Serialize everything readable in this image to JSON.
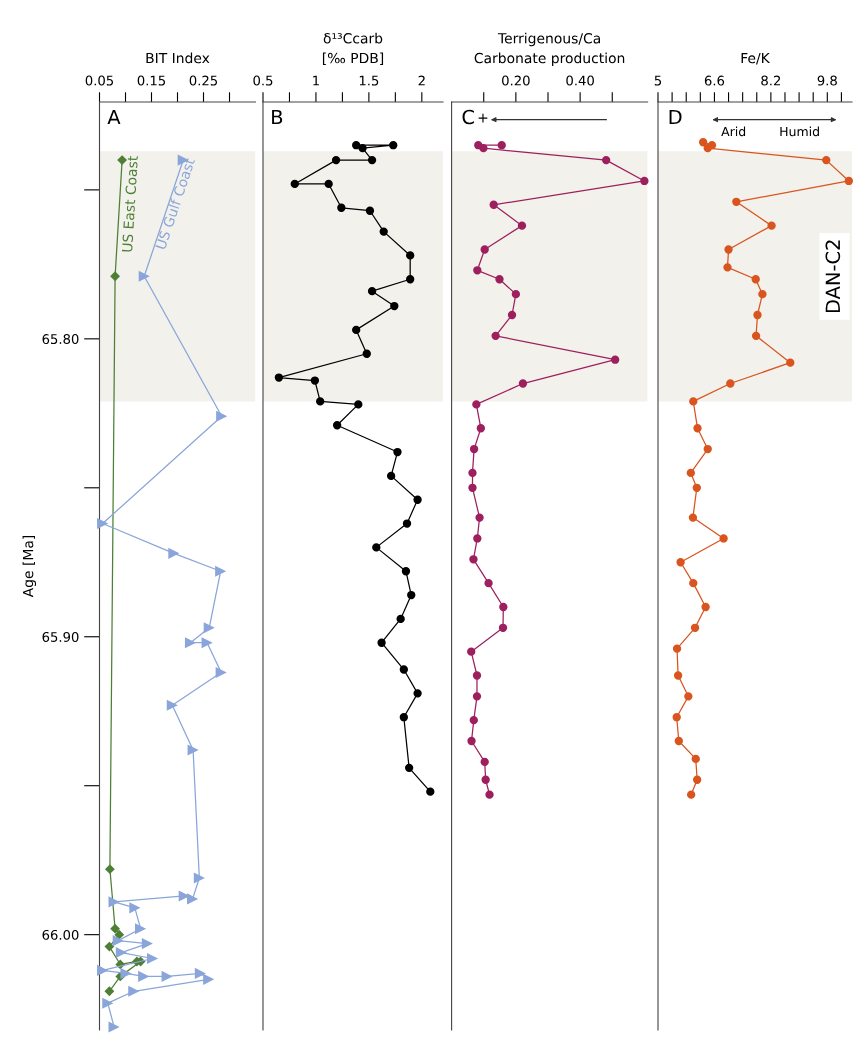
{
  "chart_data": [
    {
      "type": "line",
      "title": "BIT Index",
      "ylabel": "Age [Ma]",
      "xlim": [
        0.05,
        0.35
      ],
      "xticks": [
        0.05,
        {
          "value": 0.1,
          "label": null
        },
        0.15,
        {
          "value": 0.2,
          "label": null
        },
        0.25,
        {
          "value": 0.3,
          "label": null
        }
      ],
      "ylim": [
        66.032,
        65.7205
      ],
      "yticks": [
        {
          "value": 65.75,
          "label": null
        },
        {
          "value": 65.8,
          "label": "65.80"
        },
        {
          "value": 65.85,
          "label": null
        },
        {
          "value": 65.9,
          "label": "65.90"
        },
        {
          "value": 65.95,
          "label": null
        },
        {
          "value": 66.0,
          "label": "66.00"
        }
      ],
      "bands": [
        {
          "axis": "y",
          "from": 65.737,
          "to": 65.821,
          "color": "#f2f1ec"
        }
      ],
      "annotations": [
        "A"
      ],
      "series": [
        {
          "name": "US East Coast",
          "color": "#4e7f35",
          "marker": "diamond",
          "x": [
            0.0935,
            0.08,
            0.07,
            0.08,
            0.088,
            0.069,
            0.09,
            0.122,
            0.129,
            0.09,
            0.069
          ],
          "values": [
            65.74,
            65.779,
            65.978,
            65.998,
            66.0,
            66.004,
            66.01,
            66.009,
            66.009,
            66.014,
            66.019
          ]
        },
        {
          "name": "US Gulf Coast",
          "color": "#8aa5d9",
          "marker": "triangle",
          "x": [
            0.211,
            0.136,
            0.285,
            0.056,
            0.193,
            0.283,
            0.261,
            0.225,
            0.257,
            0.284,
            0.19,
            0.23,
            0.242,
            0.229,
            0.213,
            0.078,
            0.118,
            0.129,
            0.086,
            0.142,
            0.092,
            0.152,
            0.056,
            0.101,
            0.135,
            0.18,
            0.244,
            0.26,
            0.116,
            0.066,
            0.078
          ],
          "values": [
            65.74,
            65.779,
            65.826,
            65.862,
            65.872,
            65.878,
            65.897,
            65.902,
            65.902,
            65.912,
            65.923,
            65.938,
            65.981,
            65.988,
            65.987,
            65.989,
            65.991,
            65.998,
            66.002,
            66.003,
            66.006,
            66.008,
            66.012,
            66.013,
            66.014,
            66.014,
            66.013,
            66.015,
            66.019,
            66.023,
            66.031
          ]
        }
      ]
    },
    {
      "type": "line",
      "title": "δ¹³Ccarb\n[‰ PDB]",
      "xlim": [
        0.5,
        2.2
      ],
      "xticks": [
        0.5,
        {
          "value": 0.75,
          "label": null
        },
        1,
        {
          "value": 1.25,
          "label": null
        },
        1.5,
        {
          "value": 1.75,
          "label": null
        },
        2
      ],
      "ylim": [
        66.032,
        65.7205
      ],
      "tick_labels": "x",
      "bands": [
        {
          "axis": "y",
          "from": 65.737,
          "to": 65.821,
          "color": "#f2f1ec"
        }
      ],
      "annotations": [
        "B"
      ],
      "series": [
        {
          "color": "#000000",
          "marker": "circle",
          "x": [
            1.38,
            1.73,
            1.44,
            1.53,
            1.19,
            0.8,
            1.12,
            1.24,
            1.51,
            1.64,
            1.89,
            1.89,
            1.53,
            1.74,
            1.38,
            1.48,
            0.65,
            0.99,
            1.04,
            1.4,
            1.2,
            1.77,
            1.71,
            1.96,
            1.86,
            1.57,
            1.85,
            1.9,
            1.8,
            1.62,
            1.83,
            1.96,
            1.83,
            1.88,
            2.08
          ],
          "values": [
            65.735,
            65.735,
            65.736,
            65.74,
            65.74,
            65.748,
            65.748,
            65.756,
            65.757,
            65.764,
            65.772,
            65.78,
            65.784,
            65.789,
            65.797,
            65.805,
            65.813,
            65.814,
            65.821,
            65.822,
            65.829,
            65.838,
            65.846,
            65.854,
            65.862,
            65.87,
            65.878,
            65.886,
            65.894,
            65.902,
            65.911,
            65.919,
            65.927,
            65.944,
            65.952
          ]
        }
      ]
    },
    {
      "type": "line",
      "title": "Terrigenous/Ca\nCarbonate production",
      "xlim": [
        0,
        0.61
      ],
      "xticks": [
        {
          "value": 0.1,
          "label": null
        },
        {
          "value": 0.2,
          "label": "0.20"
        },
        {
          "value": 0.3,
          "label": null
        },
        {
          "value": 0.4,
          "label": "0.40"
        },
        {
          "value": 0.5,
          "label": null
        }
      ],
      "ylim": [
        66.032,
        65.7205
      ],
      "tick_labels": "x",
      "bands": [
        {
          "axis": "y",
          "from": 65.737,
          "to": 65.821,
          "color": "#f2f1ec"
        }
      ],
      "annotations": [
        "C",
        "+"
      ],
      "series": [
        {
          "color": "#9e1f5e",
          "marker": "circle",
          "x": [
            0.156,
            0.083,
            0.099,
            0.481,
            0.6,
            0.131,
            0.219,
            0.103,
            0.08,
            0.149,
            0.2,
            0.188,
            0.137,
            0.509,
            0.222,
            0.077,
            0.091,
            0.07,
            0.065,
            0.065,
            0.087,
            0.08,
            0.068,
            0.115,
            0.161,
            0.16,
            0.061,
            0.079,
            0.079,
            0.069,
            0.062,
            0.103,
            0.106,
            0.118
          ],
          "values": [
            65.735,
            65.735,
            65.736,
            65.74,
            65.747,
            65.755,
            65.762,
            65.77,
            65.777,
            65.78,
            65.785,
            65.792,
            65.799,
            65.807,
            65.815,
            65.822,
            65.83,
            65.837,
            65.845,
            65.85,
            65.86,
            65.867,
            65.874,
            65.882,
            65.89,
            65.897,
            65.905,
            65.913,
            65.92,
            65.928,
            65.935,
            65.942,
            65.948,
            65.953
          ]
        }
      ]
    },
    {
      "type": "line",
      "title": "Fe/K",
      "xlim": [
        5,
        10.5
      ],
      "xticks": [
        5,
        {
          "value": 5.4,
          "label": null
        },
        {
          "value": 5.8,
          "label": null
        },
        {
          "value": 6.2,
          "label": null
        },
        6.6,
        {
          "value": 7.0,
          "label": null
        },
        {
          "value": 7.4,
          "label": null
        },
        {
          "value": 7.8,
          "label": null
        },
        8.2,
        {
          "value": 8.6,
          "label": null
        },
        {
          "value": 9.0,
          "label": null
        },
        {
          "value": 9.4,
          "label": null
        },
        9.8,
        {
          "value": 10.2,
          "label": null
        }
      ],
      "ylim": [
        66.032,
        65.7205
      ],
      "tick_labels": "x",
      "bands": [
        {
          "axis": "y",
          "from": 65.737,
          "to": 65.821,
          "color": "#f2f1ec",
          "label": "DAN-C2"
        }
      ],
      "annotations": [
        "D",
        "Arid",
        "Humid"
      ],
      "series": [
        {
          "color": "#d9541e",
          "marker": "circle",
          "x": [
            6.28,
            6.53,
            6.41,
            9.77,
            10.41,
            7.22,
            8.22,
            7.0,
            6.97,
            7.77,
            7.96,
            7.82,
            7.78,
            8.75,
            7.05,
            6.0,
            6.12,
            6.41,
            5.93,
            6.1,
            5.99,
            6.86,
            5.64,
            6.0,
            6.35,
            6.05,
            5.54,
            5.57,
            5.86,
            5.53,
            5.59,
            6.07,
            6.11,
            5.94
          ],
          "values": [
            65.734,
            65.735,
            65.736,
            65.74,
            65.747,
            65.754,
            65.762,
            65.77,
            65.776,
            65.78,
            65.785,
            65.792,
            65.799,
            65.808,
            65.815,
            65.821,
            65.83,
            65.837,
            65.845,
            65.85,
            65.86,
            65.867,
            65.875,
            65.882,
            65.89,
            65.897,
            65.904,
            65.913,
            65.92,
            65.927,
            65.935,
            65.941,
            65.948,
            65.953
          ]
        }
      ]
    }
  ]
}
